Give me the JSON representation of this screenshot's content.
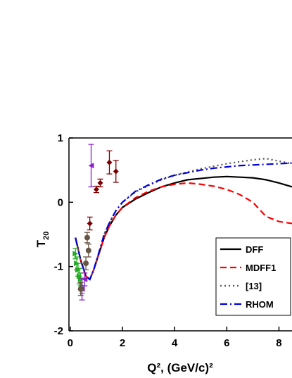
{
  "chart_data": {
    "type": "line",
    "x_label": "Q², (GeV/c)²",
    "y_label": {
      "main": "T",
      "sub": "20"
    },
    "xlim": [
      -0.05,
      8.5
    ],
    "ylim": [
      -2,
      1
    ],
    "xticks": [
      0,
      2,
      4,
      6,
      8
    ],
    "yticks": [
      -2,
      -1,
      0,
      1
    ],
    "legend": "lower right",
    "series": [
      {
        "name": "DFF",
        "color": "#000000",
        "dash": "solid",
        "x": [
          0.2,
          0.4,
          0.6,
          0.75,
          0.9,
          1.1,
          1.3,
          1.5,
          1.75,
          2,
          2.5,
          3,
          3.5,
          4,
          4.5,
          5,
          5.5,
          6,
          6.5,
          7,
          7.5,
          8,
          8.5
        ],
        "y": [
          -0.55,
          -0.9,
          -1.15,
          -1.2,
          -1.05,
          -0.8,
          -0.55,
          -0.37,
          -0.2,
          -0.08,
          0.05,
          0.15,
          0.24,
          0.3,
          0.35,
          0.37,
          0.39,
          0.4,
          0.39,
          0.38,
          0.35,
          0.3,
          0.24
        ]
      },
      {
        "name": "MDFF1",
        "color": "#ff0000",
        "dash": "dashed",
        "x": [
          0.2,
          0.4,
          0.6,
          0.75,
          0.9,
          1.1,
          1.3,
          1.5,
          1.75,
          2,
          2.5,
          3,
          3.5,
          4,
          4.5,
          5,
          5.5,
          6,
          6.5,
          7,
          7.5,
          8,
          8.5
        ],
        "y": [
          -0.55,
          -0.9,
          -1.15,
          -1.2,
          -1.05,
          -0.8,
          -0.55,
          -0.37,
          -0.2,
          -0.08,
          0.07,
          0.17,
          0.24,
          0.28,
          0.3,
          0.28,
          0.25,
          0.2,
          0.12,
          0.0,
          -0.22,
          -0.3,
          -0.33
        ]
      },
      {
        "name": "[13]",
        "color": "#555555",
        "dash": "dotted",
        "x": [
          0.2,
          0.4,
          0.6,
          0.75,
          0.9,
          1.1,
          1.3,
          1.5,
          1.75,
          2,
          2.5,
          3,
          3.5,
          4,
          4.5,
          5,
          5.5,
          6,
          6.5,
          7,
          7.5,
          8,
          8.5
        ],
        "y": [
          -0.55,
          -0.9,
          -1.15,
          -1.2,
          -1.05,
          -0.78,
          -0.5,
          -0.32,
          -0.13,
          0.0,
          0.16,
          0.26,
          0.35,
          0.42,
          0.47,
          0.52,
          0.56,
          0.6,
          0.63,
          0.66,
          0.68,
          0.64,
          0.6
        ]
      },
      {
        "name": "RHOM",
        "color": "#0000dd",
        "dash": "dashdot",
        "x": [
          0.2,
          0.4,
          0.6,
          0.75,
          0.9,
          1.1,
          1.3,
          1.5,
          1.75,
          2,
          2.5,
          3,
          3.5,
          4,
          4.5,
          5,
          5.5,
          6,
          6.5,
          7,
          7.5,
          8,
          8.5
        ],
        "y": [
          -0.55,
          -0.9,
          -1.15,
          -1.2,
          -1.05,
          -0.78,
          -0.5,
          -0.32,
          -0.13,
          0.0,
          0.17,
          0.27,
          0.36,
          0.42,
          0.46,
          0.5,
          0.53,
          0.55,
          0.57,
          0.58,
          0.59,
          0.6,
          0.61
        ]
      }
    ],
    "points": [
      {
        "color": "#22aa22",
        "marker": "triangle-right",
        "x": [
          0.2,
          0.25,
          0.3,
          0.35,
          0.4,
          0.45
        ],
        "y": [
          -0.8,
          -0.95,
          -1.05,
          -1.15,
          -1.2,
          -1.3
        ],
        "err": [
          0.08,
          0.1,
          0.1,
          0.12,
          0.1,
          0.12
        ]
      },
      {
        "color": "#8822cc",
        "marker": "triangle-left",
        "x": [
          0.8,
          0.45,
          0.55
        ],
        "y": [
          0.57,
          -1.35,
          -1.2
        ],
        "err": [
          0.33,
          0.17,
          0.1
        ]
      },
      {
        "color": "#7a0000",
        "marker": "diamond",
        "x": [
          0.75,
          1.0,
          1.15,
          1.5,
          1.75
        ],
        "y": [
          -0.33,
          0.2,
          0.3,
          0.62,
          0.48
        ],
        "err": [
          0.1,
          0.05,
          0.06,
          0.18,
          0.17
        ]
      },
      {
        "color": "#665544",
        "marker": "circle",
        "x": [
          0.65,
          0.7,
          0.6,
          0.4
        ],
        "y": [
          -0.55,
          -0.75,
          -0.95,
          -1.35
        ],
        "err": [
          0.08,
          0.1,
          0.1,
          0.1
        ]
      }
    ]
  }
}
